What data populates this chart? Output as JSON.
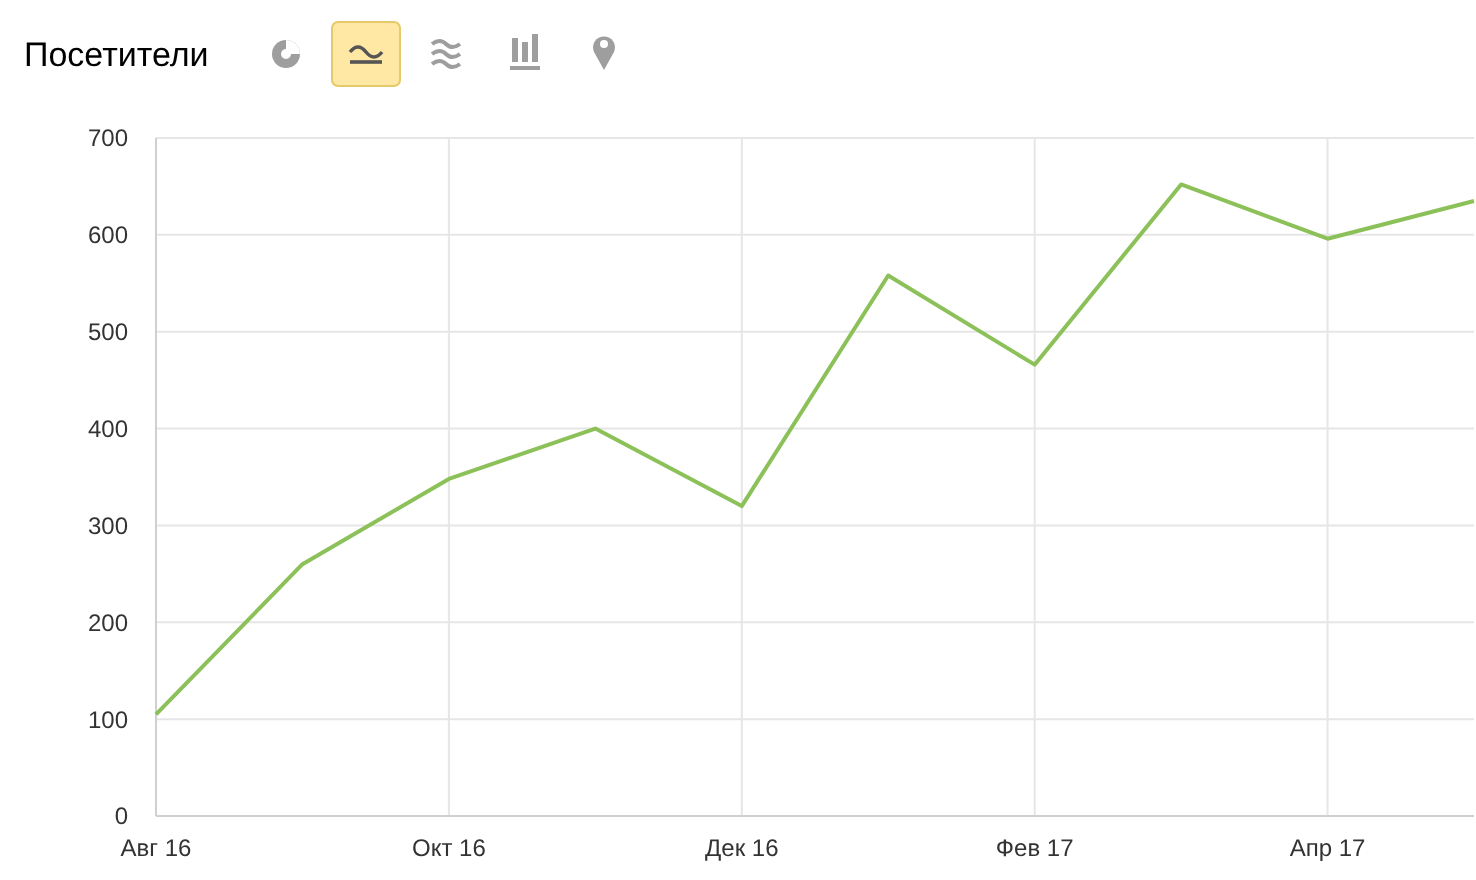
{
  "chart_data": {
    "type": "line",
    "title": "Посетители",
    "categories": [
      "Авг 16",
      null,
      "Окт 16",
      null,
      "Дек 16",
      null,
      "Фев 17",
      null,
      "Апр 17",
      null
    ],
    "series": [
      {
        "color": "#8cc15a",
        "values": [
          105,
          260,
          348,
          400,
          320,
          558,
          466,
          652,
          596,
          635
        ]
      }
    ],
    "ylim": [
      0,
      700
    ],
    "yticks": [
      0,
      100,
      200,
      300,
      400,
      500,
      600,
      700
    ],
    "grid": true,
    "marker": "none",
    "line_style": "solid"
  }
}
